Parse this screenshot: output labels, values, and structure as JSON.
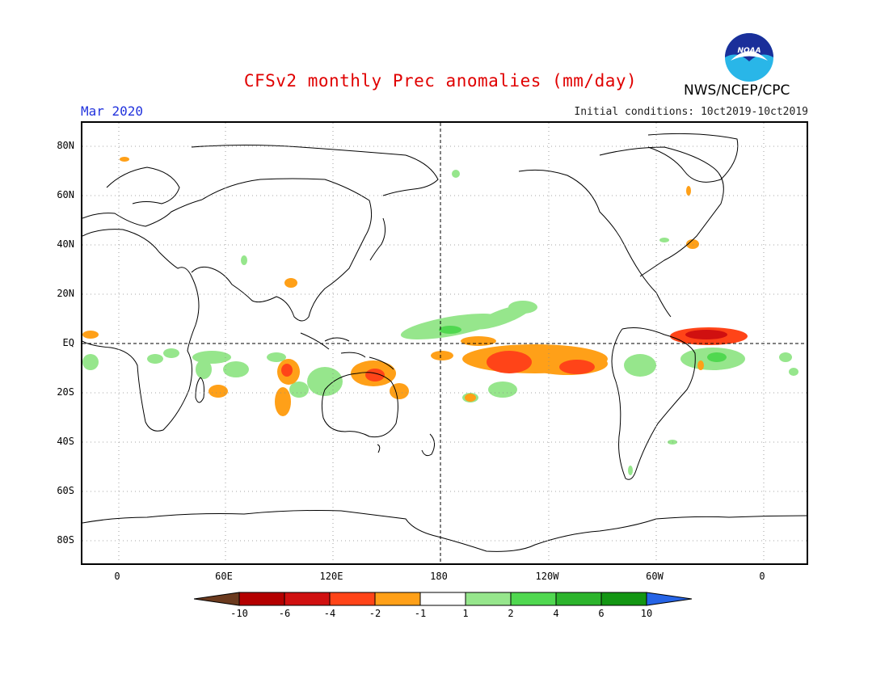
{
  "header": {
    "title": "CFSv2 monthly Prec anomalies (mm/day)",
    "agency": "NWS/NCEP/CPC",
    "logo_text": "NOAA",
    "month": "Mar 2020",
    "initial_conditions": "Initial conditions: 10ct2019-10ct2019"
  },
  "map": {
    "projection": "cylindrical",
    "lat_labels": [
      "80N",
      "60N",
      "40N",
      "20N",
      "EQ",
      "20S",
      "40S",
      "60S",
      "80S"
    ],
    "lon_labels": [
      "0",
      "60E",
      "120E",
      "180",
      "120W",
      "60W",
      "0"
    ],
    "gridlines": "dotted",
    "highlighted_features": [
      {
        "name": "equatorial positive anomaly band",
        "sign": "positive",
        "region": "Central/West Pacific north of equator"
      },
      {
        "name": "South Pacific negative anomaly",
        "sign": "negative",
        "region": "Central South Pacific 5S-15S"
      },
      {
        "name": "equatorial Atlantic negative anomaly",
        "sign": "negative",
        "region": "Off NE Brazil, near equator"
      },
      {
        "name": "Indian Ocean / Maritime Continent mixed anomalies",
        "sign": "mixed",
        "region": "Indian Ocean to New Guinea"
      }
    ]
  },
  "colorbar": {
    "labels": [
      "-10",
      "-6",
      "-4",
      "-2",
      "-1",
      "1",
      "2",
      "4",
      "6",
      "10"
    ],
    "colors": [
      "#6b3a1e",
      "#b40000",
      "#d01010",
      "#ff4418",
      "#ffa018",
      "#ffffff",
      "#96e68c",
      "#50d850",
      "#2cb42c",
      "#139613",
      "#2664e6"
    ]
  }
}
